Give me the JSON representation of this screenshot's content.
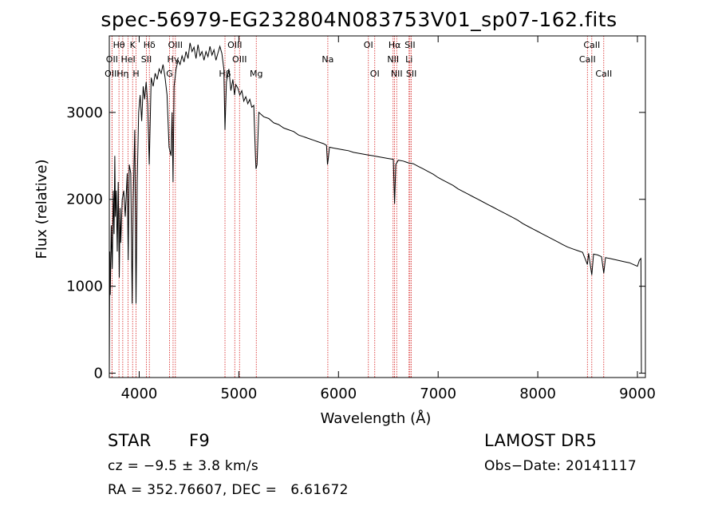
{
  "chart_data": {
    "type": "line",
    "title": "spec-56979-EG232804N083753V01_sp07-162.fits",
    "xlabel": "Wavelength (Å)",
    "ylabel": "Flux (relative)",
    "xlim": [
      3700,
      9080
    ],
    "ylim": [
      -50,
      3880
    ],
    "xticks": [
      {
        "value": 4000,
        "label": "4000"
      },
      {
        "value": 5000,
        "label": "5000"
      },
      {
        "value": 6000,
        "label": "6000"
      },
      {
        "value": 7000,
        "label": "7000"
      },
      {
        "value": 8000,
        "label": "8000"
      },
      {
        "value": 9000,
        "label": "9000"
      }
    ],
    "yticks": [
      {
        "value": 0,
        "label": "0"
      },
      {
        "value": 1000,
        "label": "1000"
      },
      {
        "value": 2000,
        "label": "2000"
      },
      {
        "value": 3000,
        "label": "3000"
      }
    ],
    "grid": false,
    "series": [
      {
        "values": [
          [
            3700,
            0
          ],
          [
            3705,
            1400
          ],
          [
            3710,
            900
          ],
          [
            3720,
            1700
          ],
          [
            3730,
            1200
          ],
          [
            3740,
            2100
          ],
          [
            3748,
            1600
          ],
          [
            3755,
            2500
          ],
          [
            3762,
            1800
          ],
          [
            3770,
            2100
          ],
          [
            3780,
            1400
          ],
          [
            3790,
            2200
          ],
          [
            3800,
            1100
          ],
          [
            3808,
            1900
          ],
          [
            3815,
            1500
          ],
          [
            3830,
            2000
          ],
          [
            3845,
            2100
          ],
          [
            3860,
            1800
          ],
          [
            3880,
            2300
          ],
          [
            3890,
            1300
          ],
          [
            3900,
            2400
          ],
          [
            3915,
            2300
          ],
          [
            3930,
            800
          ],
          [
            3940,
            2000
          ],
          [
            3955,
            2800
          ],
          [
            3968,
            800
          ],
          [
            3980,
            2200
          ],
          [
            3995,
            3000
          ],
          [
            4010,
            3200
          ],
          [
            4025,
            2900
          ],
          [
            4040,
            3300
          ],
          [
            4055,
            3150
          ],
          [
            4070,
            3350
          ],
          [
            4085,
            3100
          ],
          [
            4101,
            2400
          ],
          [
            4120,
            3400
          ],
          [
            4140,
            3300
          ],
          [
            4160,
            3450
          ],
          [
            4180,
            3380
          ],
          [
            4200,
            3500
          ],
          [
            4220,
            3450
          ],
          [
            4240,
            3550
          ],
          [
            4260,
            3400
          ],
          [
            4280,
            3200
          ],
          [
            4300,
            2600
          ],
          [
            4320,
            2500
          ],
          [
            4330,
            3000
          ],
          [
            4340,
            2200
          ],
          [
            4350,
            3300
          ],
          [
            4370,
            3500
          ],
          [
            4390,
            3600
          ],
          [
            4410,
            3550
          ],
          [
            4430,
            3650
          ],
          [
            4450,
            3580
          ],
          [
            4470,
            3700
          ],
          [
            4490,
            3620
          ],
          [
            4510,
            3800
          ],
          [
            4530,
            3700
          ],
          [
            4550,
            3750
          ],
          [
            4570,
            3620
          ],
          [
            4590,
            3780
          ],
          [
            4610,
            3650
          ],
          [
            4630,
            3700
          ],
          [
            4650,
            3600
          ],
          [
            4670,
            3700
          ],
          [
            4690,
            3640
          ],
          [
            4710,
            3760
          ],
          [
            4730,
            3660
          ],
          [
            4750,
            3720
          ],
          [
            4770,
            3600
          ],
          [
            4790,
            3680
          ],
          [
            4810,
            3760
          ],
          [
            4830,
            3680
          ],
          [
            4850,
            3500
          ],
          [
            4861,
            2800
          ],
          [
            4875,
            3350
          ],
          [
            4900,
            3500
          ],
          [
            4920,
            3250
          ],
          [
            4940,
            3380
          ],
          [
            4957,
            3200
          ],
          [
            4970,
            3320
          ],
          [
            4990,
            3280
          ],
          [
            5010,
            3200
          ],
          [
            5030,
            3250
          ],
          [
            5050,
            3130
          ],
          [
            5070,
            3180
          ],
          [
            5090,
            3100
          ],
          [
            5110,
            3150
          ],
          [
            5130,
            3060
          ],
          [
            5150,
            3080
          ],
          [
            5167,
            2500
          ],
          [
            5172,
            2350
          ],
          [
            5183,
            2400
          ],
          [
            5200,
            3000
          ],
          [
            5250,
            2950
          ],
          [
            5300,
            2930
          ],
          [
            5350,
            2880
          ],
          [
            5400,
            2860
          ],
          [
            5450,
            2820
          ],
          [
            5500,
            2800
          ],
          [
            5550,
            2780
          ],
          [
            5600,
            2740
          ],
          [
            5650,
            2720
          ],
          [
            5700,
            2700
          ],
          [
            5750,
            2680
          ],
          [
            5800,
            2660
          ],
          [
            5850,
            2640
          ],
          [
            5880,
            2620
          ],
          [
            5890,
            2400
          ],
          [
            5896,
            2450
          ],
          [
            5910,
            2600
          ],
          [
            5950,
            2590
          ],
          [
            6000,
            2580
          ],
          [
            6050,
            2570
          ],
          [
            6100,
            2560
          ],
          [
            6150,
            2540
          ],
          [
            6200,
            2530
          ],
          [
            6250,
            2520
          ],
          [
            6300,
            2510
          ],
          [
            6350,
            2500
          ],
          [
            6400,
            2490
          ],
          [
            6450,
            2480
          ],
          [
            6500,
            2470
          ],
          [
            6550,
            2460
          ],
          [
            6563,
            1950
          ],
          [
            6575,
            2400
          ],
          [
            6600,
            2450
          ],
          [
            6650,
            2440
          ],
          [
            6700,
            2420
          ],
          [
            6750,
            2410
          ],
          [
            6800,
            2380
          ],
          [
            6850,
            2350
          ],
          [
            6900,
            2320
          ],
          [
            6950,
            2290
          ],
          [
            7000,
            2250
          ],
          [
            7050,
            2220
          ],
          [
            7100,
            2190
          ],
          [
            7150,
            2160
          ],
          [
            7200,
            2120
          ],
          [
            7250,
            2090
          ],
          [
            7300,
            2060
          ],
          [
            7350,
            2030
          ],
          [
            7400,
            2000
          ],
          [
            7450,
            1970
          ],
          [
            7500,
            1940
          ],
          [
            7550,
            1910
          ],
          [
            7600,
            1880
          ],
          [
            7650,
            1850
          ],
          [
            7700,
            1820
          ],
          [
            7750,
            1790
          ],
          [
            7800,
            1760
          ],
          [
            7850,
            1720
          ],
          [
            7900,
            1690
          ],
          [
            7950,
            1660
          ],
          [
            8000,
            1630
          ],
          [
            8050,
            1600
          ],
          [
            8100,
            1570
          ],
          [
            8150,
            1540
          ],
          [
            8200,
            1510
          ],
          [
            8250,
            1480
          ],
          [
            8300,
            1450
          ],
          [
            8350,
            1430
          ],
          [
            8400,
            1410
          ],
          [
            8450,
            1390
          ],
          [
            8498,
            1250
          ],
          [
            8510,
            1380
          ],
          [
            8542,
            1130
          ],
          [
            8560,
            1370
          ],
          [
            8600,
            1360
          ],
          [
            8640,
            1340
          ],
          [
            8662,
            1150
          ],
          [
            8680,
            1330
          ],
          [
            8720,
            1320
          ],
          [
            8760,
            1310
          ],
          [
            8800,
            1300
          ],
          [
            8840,
            1290
          ],
          [
            8880,
            1280
          ],
          [
            8920,
            1270
          ],
          [
            8960,
            1250
          ],
          [
            9000,
            1230
          ],
          [
            9020,
            1300
          ],
          [
            9035,
            1320
          ],
          [
            9040,
            0
          ]
        ]
      }
    ],
    "lines": [
      {
        "label": "Hθ",
        "wave": 3797,
        "row": 0
      },
      {
        "label": "OII",
        "wave": 3727,
        "row": 1
      },
      {
        "label": "OIII",
        "wave": 3727,
        "row": 2
      },
      {
        "label": "Hη",
        "wave": 3835,
        "row": 2
      },
      {
        "label": "K",
        "wave": 3934,
        "row": 0
      },
      {
        "label": "HeI",
        "wave": 3889,
        "row": 1
      },
      {
        "label": "H",
        "wave": 3968,
        "row": 2
      },
      {
        "label": "Hδ",
        "wave": 4102,
        "row": 0
      },
      {
        "label": "SII",
        "wave": 4072,
        "row": 1
      },
      {
        "label": "OIII",
        "wave": 4363,
        "row": 0
      },
      {
        "label": "Hγ",
        "wave": 4340,
        "row": 1
      },
      {
        "label": "G",
        "wave": 4305,
        "row": 2
      },
      {
        "label": "OIII",
        "wave": 4959,
        "row": 0
      },
      {
        "label": "OIII",
        "wave": 5007,
        "row": 1
      },
      {
        "label": "Hβ",
        "wave": 4861,
        "row": 2
      },
      {
        "label": "Mg",
        "wave": 5175,
        "row": 2
      },
      {
        "label": "Na",
        "wave": 5893,
        "row": 1
      },
      {
        "label": "OI",
        "wave": 6300,
        "row": 0
      },
      {
        "label": "OI",
        "wave": 6364,
        "row": 2
      },
      {
        "label": "Hα",
        "wave": 6563,
        "row": 0
      },
      {
        "label": "NII",
        "wave": 6548,
        "row": 1
      },
      {
        "label": "NII",
        "wave": 6584,
        "row": 2
      },
      {
        "label": "SII",
        "wave": 6717,
        "row": 0
      },
      {
        "label": "Li",
        "wave": 6708,
        "row": 1
      },
      {
        "label": "SII",
        "wave": 6731,
        "row": 2
      },
      {
        "label": "CaII",
        "wave": 8542,
        "row": 0
      },
      {
        "label": "CaII",
        "wave": 8498,
        "row": 1
      },
      {
        "label": "CaII",
        "wave": 8662,
        "row": 2
      }
    ]
  },
  "info": {
    "class": "STAR",
    "subclass": "F9",
    "survey": "LAMOST DR5",
    "cz": "cz = −9.5 ± 3.8 km/s",
    "obs_date": "Obs−Date: 20141117",
    "radec": "RA = 352.76607, DEC =   6.61672"
  }
}
